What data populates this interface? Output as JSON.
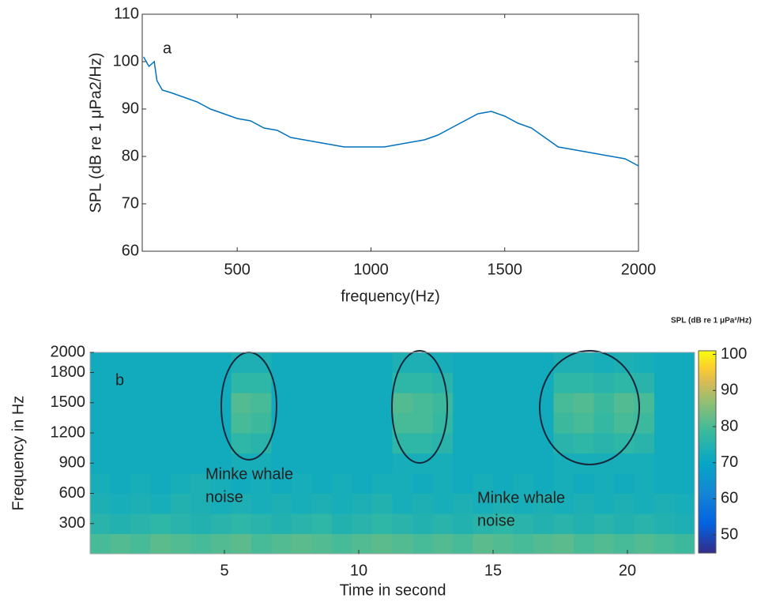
{
  "chart_data": [
    {
      "type": "line",
      "annotation": "a",
      "xlabel": "frequency(Hz)",
      "ylabel": "SPL (dB re 1 μPa2/Hz)",
      "x": [
        150,
        170,
        190,
        200,
        220,
        250,
        300,
        350,
        400,
        450,
        500,
        550,
        600,
        650,
        700,
        750,
        800,
        850,
        900,
        950,
        1000,
        1050,
        1100,
        1150,
        1200,
        1250,
        1300,
        1350,
        1400,
        1450,
        1500,
        1550,
        1600,
        1650,
        1700,
        1750,
        1800,
        1850,
        1900,
        1950,
        2000
      ],
      "values": [
        101,
        99,
        100,
        96,
        94,
        93.5,
        92.5,
        91.5,
        90,
        89,
        88,
        87.5,
        86,
        85.5,
        84,
        83.5,
        83,
        82.5,
        82,
        82,
        82,
        82,
        82.5,
        83,
        83.5,
        84.5,
        86,
        87.5,
        89,
        89.5,
        88.5,
        87,
        86,
        84,
        82,
        81.5,
        81,
        80.5,
        80,
        79.5,
        78
      ],
      "color": "#0072bd",
      "xlim": [
        145,
        2000
      ],
      "xticks": [
        500,
        1000,
        1500,
        2000
      ],
      "ylim": [
        60,
        110
      ],
      "yticks": [
        60,
        70,
        80,
        90,
        100,
        110
      ]
    },
    {
      "type": "heatmap",
      "annotation": "b",
      "xlabel": "Time in second",
      "ylabel": "Frequency in Hz",
      "colorbar_title": "SPL (dB re 1 μPa²/Hz)",
      "colormap": "parula",
      "notes": [
        [
          "Minke whale",
          "noise"
        ],
        [
          "Minke whale",
          "noise"
        ]
      ],
      "xbins": [
        0,
        0.75,
        1.5,
        2.25,
        3,
        3.75,
        4.5,
        5.25,
        6,
        6.75,
        7.5,
        8.25,
        9,
        9.75,
        10.5,
        11.25,
        12,
        12.75,
        13.5,
        14.25,
        15,
        15.75,
        16.5,
        17.25,
        18,
        18.75,
        19.5,
        20.25,
        21,
        21.75,
        22.5
      ],
      "ybins": [
        0,
        200,
        400,
        600,
        800,
        1000,
        1200,
        1400,
        1600,
        1800,
        2000
      ],
      "z": [
        [
          80,
          81,
          80,
          82,
          81,
          80,
          81,
          82,
          80,
          81,
          82,
          81,
          80,
          81,
          82,
          81,
          80,
          81,
          80,
          82,
          81,
          80,
          81,
          82,
          80,
          81,
          80,
          81,
          80,
          79
        ],
        [
          76,
          75,
          76,
          77,
          76,
          75,
          76,
          77,
          76,
          75,
          76,
          77,
          75,
          76,
          77,
          76,
          75,
          76,
          75,
          76,
          77,
          76,
          75,
          76,
          75,
          76,
          75,
          76,
          75,
          74
        ],
        [
          74,
          73,
          74,
          73,
          75,
          74,
          73,
          74,
          73,
          74,
          73,
          74,
          73,
          74,
          75,
          73,
          74,
          73,
          74,
          73,
          74,
          73,
          74,
          73,
          74,
          73,
          74,
          73,
          74,
          73
        ],
        [
          73,
          72,
          73,
          72,
          73,
          74,
          73,
          72,
          73,
          72,
          73,
          72,
          73,
          72,
          73,
          73,
          72,
          73,
          72,
          73,
          72,
          73,
          72,
          73,
          72,
          73,
          72,
          73,
          72,
          72
        ],
        [
          72,
          72,
          72,
          72,
          72,
          72,
          72,
          73,
          73,
          72,
          72,
          72,
          72,
          72,
          72,
          73,
          73,
          73,
          72,
          72,
          72,
          72,
          72,
          73,
          73,
          73,
          73,
          73,
          72,
          72
        ],
        [
          72,
          72,
          72,
          72,
          72,
          72,
          72,
          77,
          76,
          72,
          72,
          72,
          72,
          72,
          72,
          77,
          77,
          76,
          72,
          72,
          72,
          72,
          72,
          76,
          77,
          76,
          77,
          76,
          72,
          72
        ],
        [
          72,
          72,
          72,
          72,
          72,
          72,
          72,
          80,
          79,
          72,
          72,
          72,
          72,
          72,
          72,
          80,
          80,
          78,
          72,
          72,
          72,
          72,
          72,
          79,
          80,
          78,
          80,
          79,
          72,
          72
        ],
        [
          72,
          72,
          72,
          72,
          72,
          72,
          72,
          81,
          80,
          72,
          72,
          72,
          72,
          72,
          72,
          81,
          80,
          79,
          72,
          72,
          72,
          72,
          72,
          80,
          81,
          79,
          81,
          80,
          72,
          72
        ],
        [
          72,
          72,
          72,
          72,
          72,
          72,
          72,
          77,
          77,
          72,
          72,
          72,
          72,
          72,
          72,
          77,
          77,
          76,
          72,
          72,
          72,
          72,
          72,
          77,
          77,
          76,
          77,
          76,
          72,
          72
        ],
        [
          72,
          72,
          72,
          72,
          72,
          72,
          72,
          74,
          74,
          72,
          72,
          72,
          72,
          72,
          72,
          74,
          74,
          73,
          72,
          72,
          72,
          72,
          72,
          74,
          74,
          73,
          74,
          73,
          72,
          72
        ]
      ],
      "xlim": [
        0,
        22.5
      ],
      "xticks": [
        5,
        10,
        15,
        20
      ],
      "ylim": [
        0,
        2000
      ],
      "yticks": [
        300,
        600,
        900,
        1200,
        1500,
        1800,
        2000
      ],
      "clim": [
        45,
        101
      ],
      "cticks": [
        50,
        60,
        70,
        80,
        90,
        100
      ]
    }
  ]
}
